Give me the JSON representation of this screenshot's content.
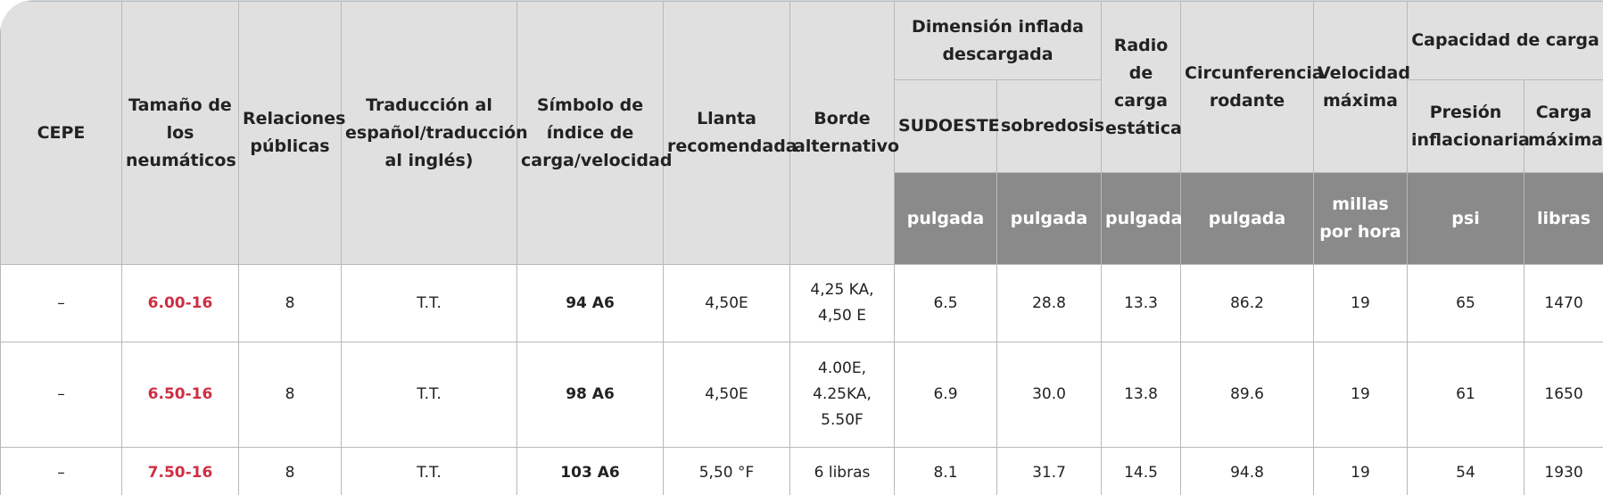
{
  "headers": {
    "cepe": "CEPE",
    "tire_size": "Tamaño de los neumáticos",
    "relations": "Relaciones públicas",
    "translation": "Traducción al español/traducción al inglés)",
    "symbol": "Símbolo de índice de carga/velocidad",
    "rim": "Llanta recomendada",
    "alt_rim": "Borde alternativo",
    "inflated_dim": "Dimensión inflada descargada",
    "sw": "SUDOESTE",
    "od": "sobredosis",
    "static_radius": "Radio de carga estática",
    "circumference": "Circunferencia rodante",
    "max_speed": "Velocidad máxima",
    "load_capacity": "Capacidad de carga",
    "pressure": "Presión inflacionaria",
    "max_load": "Carga máxima"
  },
  "units": {
    "sw": "pulgada",
    "od": "pulgada",
    "static_radius": "pulgada",
    "circumference": "pulgada",
    "max_speed": "millas por hora",
    "pressure": "psi",
    "max_load": "libras"
  },
  "rows": [
    {
      "cepe": "–",
      "size": "6.00-16",
      "pr": "8",
      "tt": "T.T.",
      "symbol": "94 A6",
      "rim": "4,50E",
      "alt_rim": "4,25 KA, 4,50 E",
      "sw": "6.5",
      "od": "28.8",
      "srl": "13.3",
      "circ": "86.2",
      "speed": "19",
      "psi": "65",
      "load": "1470"
    },
    {
      "cepe": "–",
      "size": "6.50-16",
      "pr": "8",
      "tt": "T.T.",
      "symbol": "98 A6",
      "rim": "4,50E",
      "alt_rim": "4.00E, 4.25KA, 5.50F",
      "sw": "6.9",
      "od": "30.0",
      "srl": "13.8",
      "circ": "89.6",
      "speed": "19",
      "psi": "61",
      "load": "1650"
    },
    {
      "cepe": "–",
      "size": "7.50-16",
      "pr": "8",
      "tt": "T.T.",
      "symbol": "103 A6",
      "rim": "5,50 °F",
      "alt_rim": "6 libras",
      "sw": "8.1",
      "od": "31.7",
      "srl": "14.5",
      "circ": "94.8",
      "speed": "19",
      "psi": "54",
      "load": "1930"
    }
  ]
}
